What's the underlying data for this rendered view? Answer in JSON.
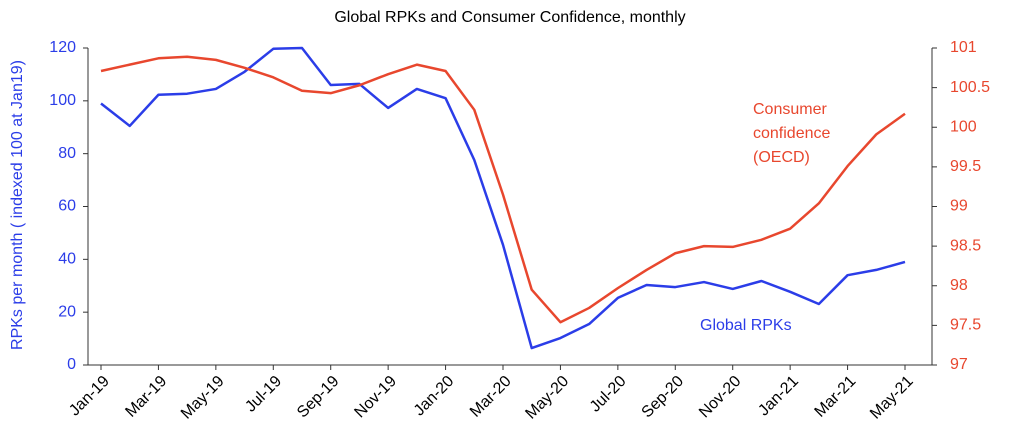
{
  "chart_data": {
    "type": "line",
    "title": "Global RPKs and Consumer Confidence, monthly",
    "ylabel": "RPKs per month ( indexed 100 at Jan19)",
    "categories": [
      "Jan-19",
      null,
      "Mar-19",
      null,
      "May-19",
      null,
      "Jul-19",
      null,
      "Sep-19",
      null,
      "Nov-19",
      null,
      "Jan-20",
      null,
      "Mar-20",
      null,
      "May-20",
      null,
      "Jul-20",
      null,
      "Sep-20",
      null,
      "Nov-20",
      null,
      "Jan-21",
      null,
      "Mar-21",
      null,
      "May-21"
    ],
    "series": [
      {
        "name": "Global RPKs",
        "color": "#2b3de8",
        "axis": "y",
        "values": [
          99,
          90.5,
          102.3,
          102.7,
          104.5,
          111,
          119.7,
          120,
          106,
          106.4,
          97.3,
          104.5,
          101,
          77.6,
          45.5,
          6.4,
          10.2,
          15.5,
          25.4,
          30.3,
          29.5,
          31.4,
          28.8,
          31.8,
          27.7,
          23.1,
          34,
          36,
          39
        ]
      },
      {
        "name": "Consumer confidence (OECD)",
        "color": "#e8472e",
        "axis": "y2",
        "values": [
          100.71,
          100.79,
          100.87,
          100.89,
          100.85,
          100.75,
          100.63,
          100.46,
          100.43,
          100.53,
          100.67,
          100.79,
          100.71,
          100.22,
          99.15,
          97.95,
          97.54,
          97.72,
          97.97,
          98.2,
          98.41,
          98.5,
          98.49,
          98.58,
          98.72,
          99.04,
          99.51,
          99.91,
          100.17
        ]
      }
    ],
    "ylim": [
      0,
      120
    ],
    "yticks": [
      0,
      20,
      40,
      60,
      80,
      100,
      120
    ],
    "y2lim": [
      97,
      101
    ],
    "y2ticks": [
      97,
      97.5,
      98,
      98.5,
      99,
      99.5,
      100,
      100.5,
      101
    ]
  }
}
